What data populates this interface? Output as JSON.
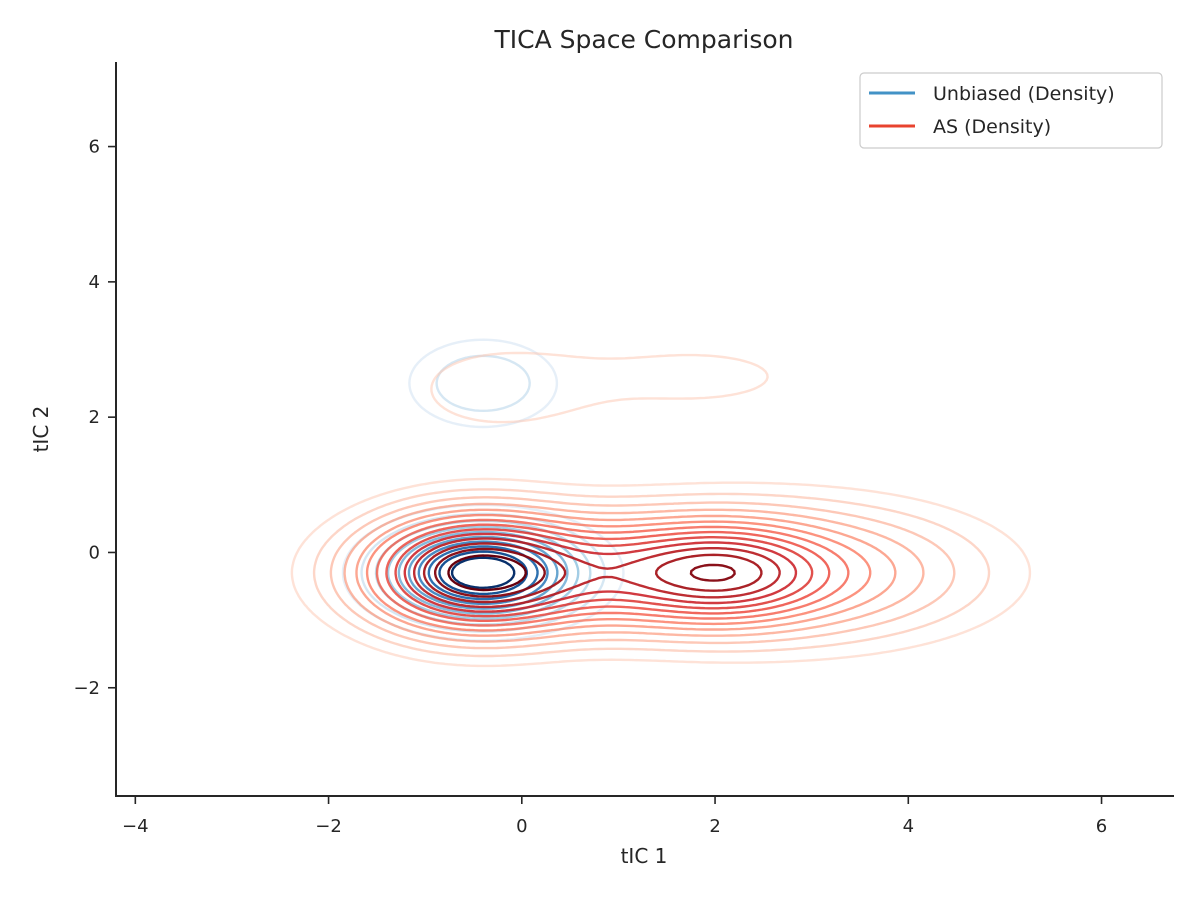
{
  "chart_data": {
    "type": "contour",
    "title": "TICA Space Comparison",
    "xlabel": "tIC 1",
    "ylabel": "tIC 2",
    "xlim": [
      -4.2,
      6.75
    ],
    "ylim": [
      -3.6,
      7.25
    ],
    "xticks": [
      -4,
      -2,
      0,
      2,
      4,
      6
    ],
    "xtick_labels": [
      "−4",
      "−2",
      "0",
      "2",
      "4",
      "6"
    ],
    "yticks": [
      -2,
      0,
      2,
      4,
      6
    ],
    "ytick_labels": [
      "−2",
      "0",
      "2",
      "4",
      "6"
    ],
    "grid": false,
    "legend_position": "upper right",
    "legend": [
      {
        "label": "Unbiased (Density)",
        "color": "#4292c6"
      },
      {
        "label": "AS (Density)",
        "color": "#e8432f"
      }
    ],
    "series": [
      {
        "name": "Unbiased (Density)",
        "colormap": "Blues",
        "levels": 10,
        "components": [
          {
            "center": [
              -0.4,
              -0.3
            ],
            "sigma": [
              0.55,
              0.38
            ],
            "weight": 1.0
          },
          {
            "center": [
              -0.4,
              2.5
            ],
            "sigma": [
              0.45,
              0.38
            ],
            "weight": 0.13
          },
          {
            "center": [
              2.3,
              -0.3
            ],
            "sigma": [
              0.3,
              0.25
            ],
            "weight": 0.03
          }
        ]
      },
      {
        "name": "AS (Density)",
        "colormap": "Reds",
        "levels": 14,
        "components": [
          {
            "center": [
              -0.5,
              -0.3
            ],
            "sigma": [
              0.65,
              0.5
            ],
            "weight": 1.0
          },
          {
            "center": [
              1.2,
              -0.3
            ],
            "sigma": [
              1.3,
              0.5
            ],
            "weight": 0.6
          },
          {
            "center": [
              2.1,
              -0.3
            ],
            "sigma": [
              0.6,
              0.42
            ],
            "weight": 0.4
          },
          {
            "center": [
              3.0,
              -0.3
            ],
            "sigma": [
              1.1,
              0.6
            ],
            "weight": 0.2
          },
          {
            "center": [
              -0.3,
              2.4
            ],
            "sigma": [
              0.7,
              0.5
            ],
            "weight": 0.04
          },
          {
            "center": [
              1.8,
              2.6
            ],
            "sigma": [
              1.2,
              0.5
            ],
            "weight": 0.035
          }
        ]
      }
    ]
  }
}
